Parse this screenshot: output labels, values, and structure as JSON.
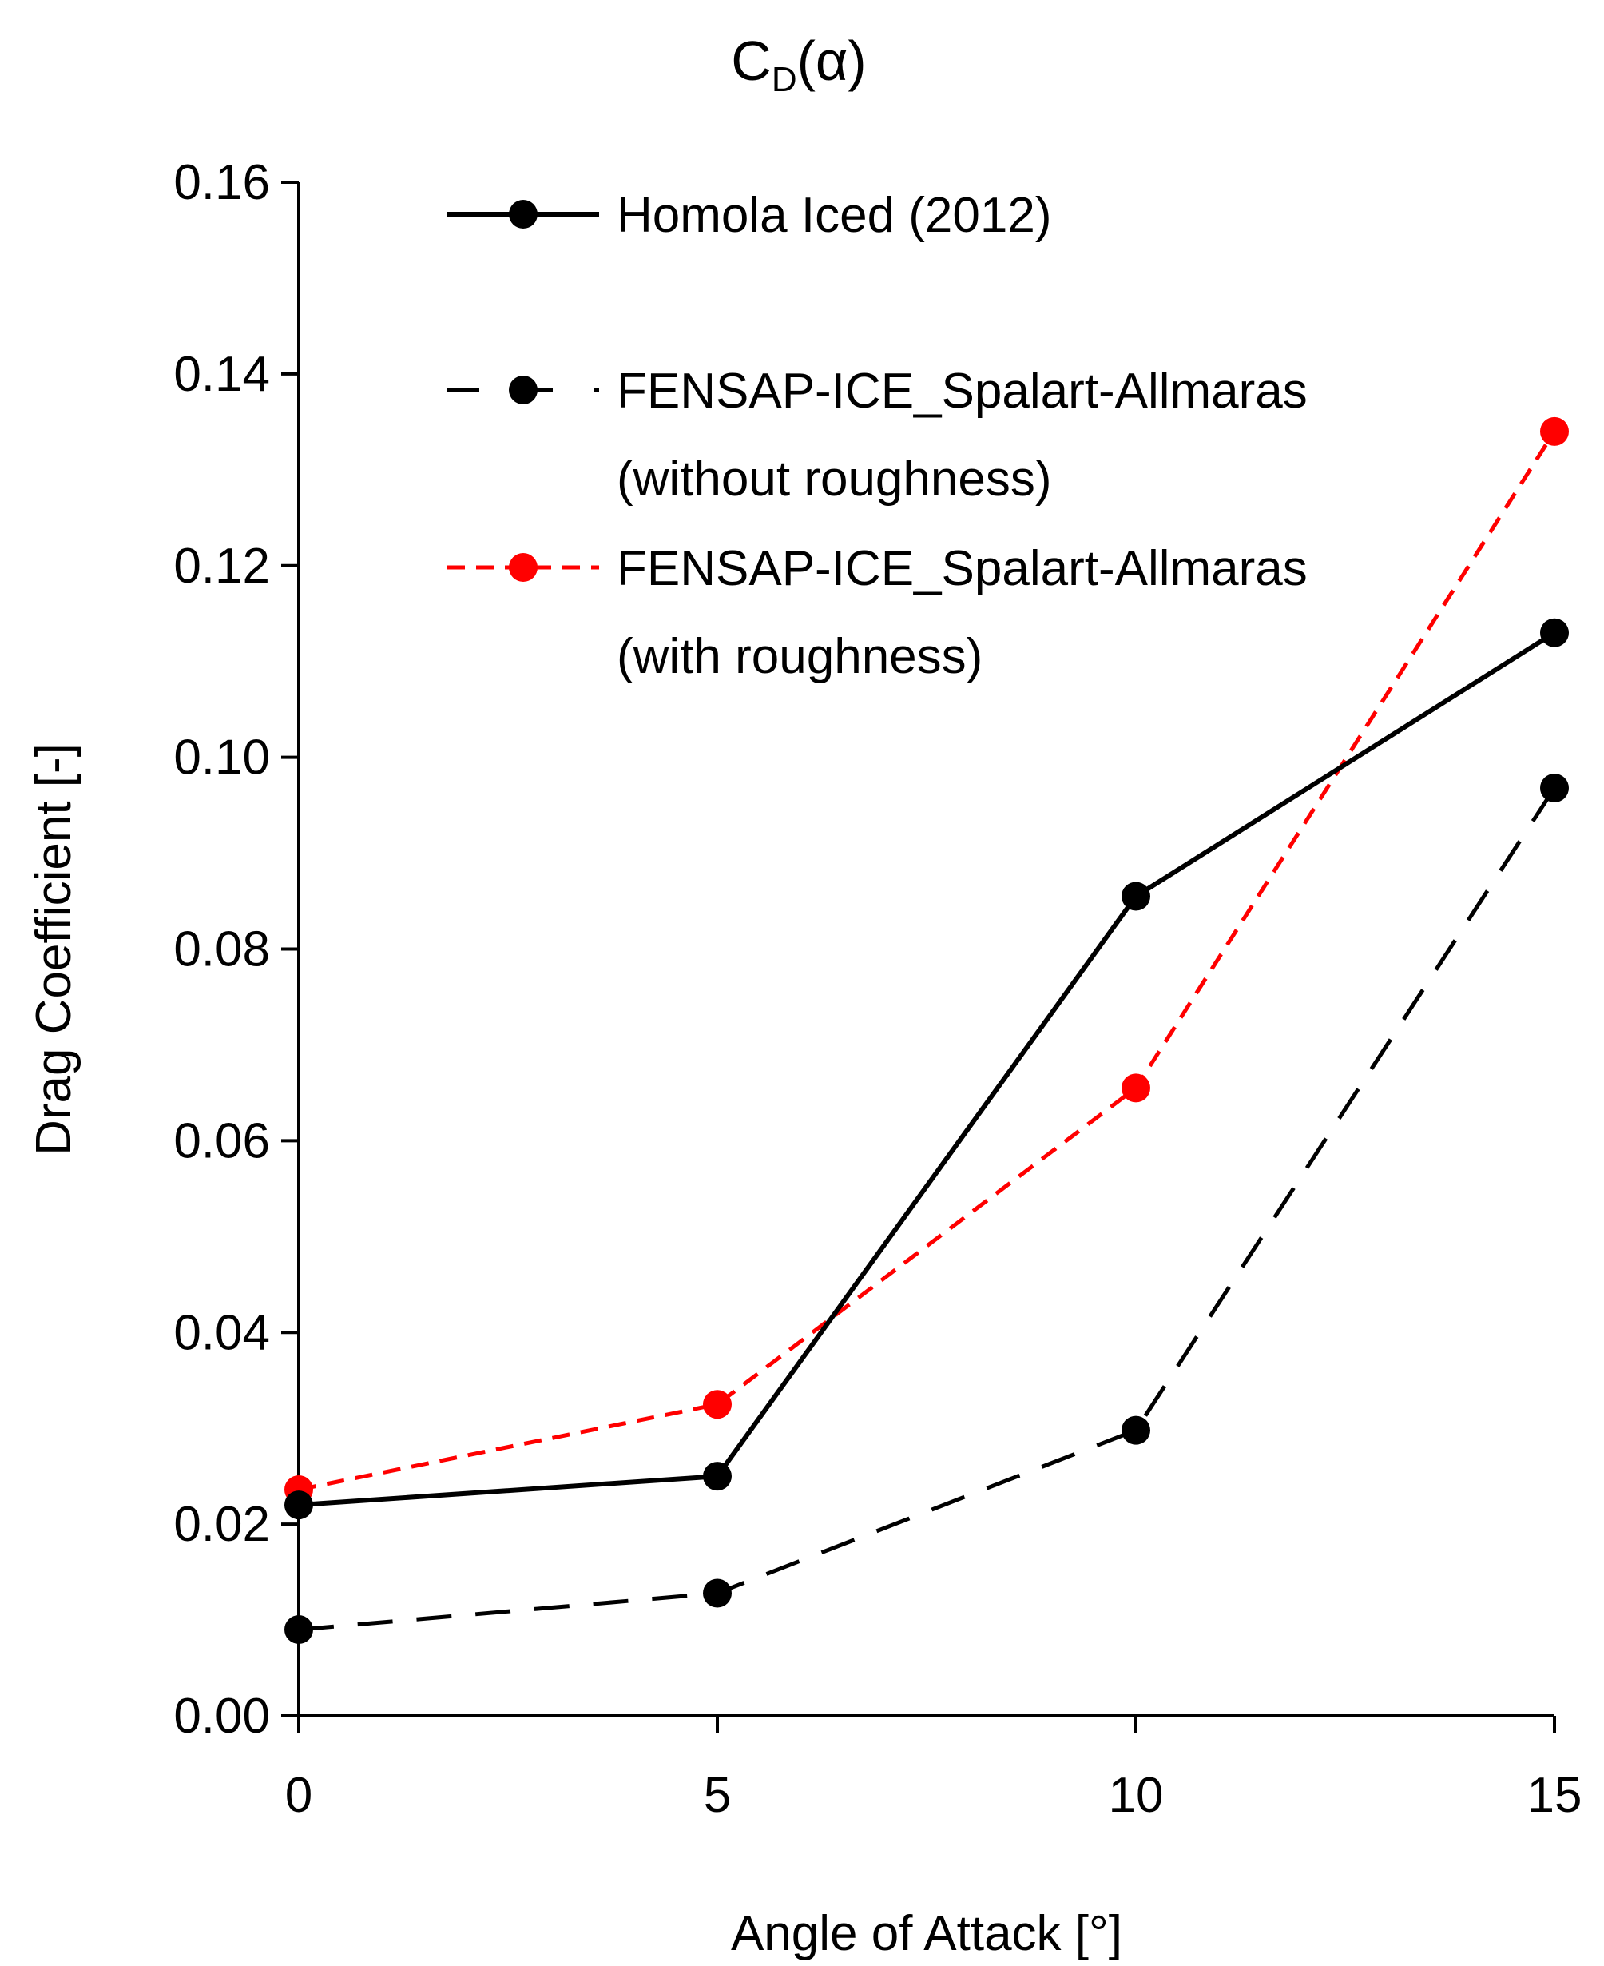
{
  "chart_data": {
    "type": "line",
    "title_main": "C",
    "title_sub": "D",
    "title_tail": "(α)",
    "xlabel": "Angle of Attack [°]",
    "ylabel": "Drag Coefficient [-]",
    "x": [
      0,
      5,
      10,
      15
    ],
    "x_ticks": [
      "0",
      "5",
      "10",
      "15"
    ],
    "xlim": [
      0,
      15
    ],
    "ylim": [
      0,
      0.16
    ],
    "y_ticks": [
      "0.00",
      "0.02",
      "0.04",
      "0.06",
      "0.08",
      "0.10",
      "0.12",
      "0.14",
      "0.16"
    ],
    "grid": false,
    "legend_position": "top-right",
    "series": [
      {
        "name": "Homola Iced (2012)",
        "legend_lines": [
          "Homola Iced (2012)"
        ],
        "values": [
          0.022,
          0.025,
          0.0855,
          0.113
        ],
        "color": "#000000",
        "dash": "solid"
      },
      {
        "name": "FENSAP-ICE_Spalart-Allmaras (without roughness)",
        "legend_lines": [
          "FENSAP-ICE_Spalart-Allmaras",
          "(without roughness)"
        ],
        "values": [
          0.009,
          0.0128,
          0.0298,
          0.0968
        ],
        "color": "#000000",
        "dash": "long-dash"
      },
      {
        "name": "FENSAP-ICE_Spalart-Allmaras (with roughness)",
        "legend_lines": [
          "FENSAP-ICE_Spalart-Allmaras",
          "(with roughness)"
        ],
        "values": [
          0.0236,
          0.0325,
          0.0655,
          0.134
        ],
        "color": "#ff0000",
        "dash": "short-dash"
      }
    ]
  }
}
